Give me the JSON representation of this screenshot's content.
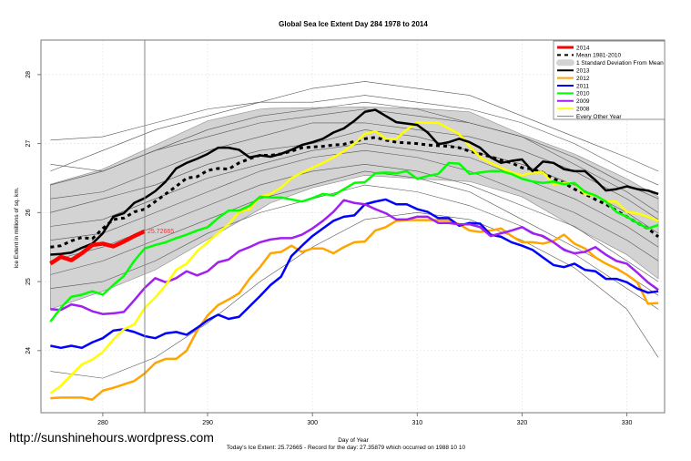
{
  "watermark_url": "http://sunshinehours.wordpress.com",
  "chart_data": {
    "type": "line",
    "title": "Global Sea Ice Extent Day 284 1978 to 2014",
    "xlabel": "Day of Year",
    "ylabel": "Ice Extent in millions of sq. km.",
    "subtitle": "Today's Ice Extent: 25.72665  - Record for the day: 27.35879 which occurred on 1988 10 10",
    "xlim": [
      274.1,
      333.6
    ],
    "ylim": [
      23.1,
      28.5
    ],
    "xticks": [
      280,
      290,
      300,
      310,
      320,
      330
    ],
    "yticks": [
      24,
      25,
      26,
      27,
      28
    ],
    "grid": true,
    "legend_position": "top-right",
    "current_day": 284,
    "current_value_label": "25.72665",
    "x_start": 275,
    "legend": [
      {
        "label": "2014",
        "color": "#ff0000",
        "style": "solid-thick"
      },
      {
        "label": "Mean 1981-2010",
        "color": "#000000",
        "style": "dashed"
      },
      {
        "label": "1 Standard Deviation From Mean",
        "color": "#d3d3d3",
        "style": "band"
      },
      {
        "label": "2013",
        "color": "#000000",
        "style": "solid"
      },
      {
        "label": "2012",
        "color": "#ffa500",
        "style": "solid"
      },
      {
        "label": "2011",
        "color": "#0000ff",
        "style": "solid"
      },
      {
        "label": "2010",
        "color": "#00ff00",
        "style": "solid"
      },
      {
        "label": "2009",
        "color": "#a020f0",
        "style": "solid"
      },
      {
        "label": "2008",
        "color": "#ffff00",
        "style": "solid"
      },
      {
        "label": "Every Other Year",
        "color": "#606060",
        "style": "thin"
      }
    ],
    "std_band": {
      "days": [
        275,
        280,
        285,
        290,
        295,
        296,
        300,
        305,
        310,
        315,
        320,
        325,
        330,
        333
      ],
      "upper": [
        26.41,
        26.63,
        26.98,
        27.33,
        27.5,
        27.51,
        27.52,
        27.53,
        27.51,
        27.46,
        27.13,
        26.85,
        26.49,
        26.23
      ],
      "lower": [
        24.6,
        24.86,
        25.17,
        25.61,
        26.05,
        26.14,
        26.36,
        26.54,
        26.49,
        26.45,
        26.23,
        25.79,
        25.39,
        25.04
      ]
    },
    "other_years": {
      "days": [
        275,
        280,
        285,
        290,
        295,
        300,
        305,
        310,
        315,
        320,
        325,
        330,
        333
      ],
      "series": [
        [
          27.05,
          27.1,
          27.3,
          27.5,
          27.6,
          27.8,
          27.9,
          27.8,
          27.7,
          27.4,
          27.1,
          26.8,
          26.6
        ],
        [
          26.6,
          26.9,
          27.2,
          27.4,
          27.6,
          27.6,
          27.7,
          27.6,
          27.5,
          27.3,
          27.0,
          26.6,
          26.4
        ],
        [
          26.4,
          26.6,
          26.9,
          27.1,
          27.3,
          27.4,
          27.5,
          27.4,
          27.3,
          27.1,
          26.8,
          26.4,
          26.2
        ],
        [
          26.2,
          26.3,
          26.6,
          26.9,
          27.1,
          27.3,
          27.3,
          27.2,
          27.1,
          26.9,
          26.6,
          26.2,
          25.9
        ],
        [
          26.0,
          26.2,
          26.4,
          26.7,
          26.9,
          27.0,
          27.2,
          27.1,
          26.9,
          26.7,
          26.4,
          26.0,
          25.7
        ],
        [
          25.8,
          25.9,
          26.2,
          26.5,
          26.7,
          26.9,
          27.0,
          26.9,
          26.8,
          26.5,
          26.2,
          25.8,
          25.5
        ],
        [
          25.6,
          25.7,
          26.0,
          26.3,
          26.6,
          26.8,
          26.9,
          26.8,
          26.6,
          26.3,
          26.0,
          25.6,
          25.3
        ],
        [
          25.3,
          25.5,
          25.8,
          26.1,
          26.4,
          26.6,
          26.7,
          26.6,
          26.4,
          26.1,
          25.8,
          25.3,
          25.0
        ],
        [
          25.1,
          25.3,
          25.6,
          25.9,
          26.2,
          26.4,
          26.6,
          26.5,
          26.3,
          25.9,
          25.5,
          25.1,
          24.8
        ],
        [
          24.9,
          25.0,
          25.3,
          25.7,
          26.0,
          26.2,
          26.4,
          26.3,
          26.1,
          25.8,
          25.4,
          24.9,
          24.6
        ],
        [
          23.7,
          23.6,
          23.9,
          24.4,
          25.0,
          25.5,
          25.9,
          26.0,
          25.9,
          25.6,
          25.2,
          24.6,
          23.9
        ],
        [
          26.7,
          26.6,
          26.9,
          27.2,
          27.4,
          27.5,
          27.6,
          27.5,
          27.3,
          27.1,
          26.7,
          26.3,
          26.0
        ]
      ]
    },
    "series": [
      {
        "name": "Mean 1981-2010",
        "color": "#000000",
        "dashed": true,
        "width": 3,
        "values": [
          25.5,
          25.52,
          25.59,
          25.64,
          25.62,
          25.77,
          25.9,
          25.92,
          26.01,
          26.05,
          26.16,
          26.27,
          26.38,
          26.5,
          26.52,
          26.61,
          26.64,
          26.63,
          26.72,
          26.78,
          26.83,
          26.83,
          26.85,
          26.89,
          26.94,
          26.95,
          26.96,
          26.98,
          26.99,
          27.03,
          27.07,
          27.09,
          27.05,
          27.02,
          27.01,
          27.0,
          26.98,
          26.97,
          26.96,
          26.94,
          26.89,
          26.85,
          26.81,
          26.76,
          26.72,
          26.65,
          26.63,
          26.58,
          26.49,
          26.43,
          26.34,
          26.27,
          26.19,
          26.12,
          26.03,
          25.94,
          25.85,
          25.77,
          25.65
        ]
      },
      {
        "name": "2012",
        "color": "#ffa500",
        "width": 2.5,
        "values": [
          23.31,
          23.32,
          23.32,
          23.32,
          23.29,
          23.42,
          23.46,
          23.51,
          23.56,
          23.67,
          23.82,
          23.88,
          23.88,
          24.0,
          24.29,
          24.51,
          24.66,
          24.74,
          24.83,
          25.04,
          25.21,
          25.41,
          25.43,
          25.52,
          25.43,
          25.48,
          25.48,
          25.41,
          25.5,
          25.57,
          25.58,
          25.74,
          25.79,
          25.88,
          25.89,
          25.89,
          25.89,
          25.89,
          25.89,
          25.83,
          25.74,
          25.72,
          25.74,
          25.77,
          25.66,
          25.57,
          25.57,
          25.55,
          25.59,
          25.68,
          25.55,
          25.48,
          25.35,
          25.26,
          25.19,
          25.1,
          24.99,
          24.68,
          24.69
        ]
      },
      {
        "name": "2011",
        "color": "#0000ff",
        "width": 2.5,
        "values": [
          24.07,
          24.04,
          24.07,
          24.04,
          24.12,
          24.18,
          24.29,
          24.31,
          24.27,
          24.21,
          24.18,
          24.25,
          24.27,
          24.23,
          24.33,
          24.44,
          24.52,
          24.46,
          24.49,
          24.64,
          24.79,
          24.95,
          25.07,
          25.37,
          25.52,
          25.66,
          25.77,
          25.88,
          25.94,
          25.96,
          26.12,
          26.16,
          26.19,
          26.12,
          26.12,
          26.05,
          26.01,
          25.92,
          25.92,
          25.81,
          25.85,
          25.84,
          25.68,
          25.65,
          25.57,
          25.52,
          25.46,
          25.35,
          25.24,
          25.21,
          25.26,
          25.17,
          25.15,
          25.04,
          25.04,
          24.99,
          24.9,
          24.84,
          24.86
        ]
      },
      {
        "name": "2009",
        "color": "#a020f0",
        "width": 2.5,
        "values": [
          24.6,
          24.59,
          24.67,
          24.64,
          24.57,
          24.53,
          24.54,
          24.56,
          24.73,
          24.91,
          25.05,
          24.99,
          25.05,
          25.15,
          25.09,
          25.15,
          25.28,
          25.32,
          25.44,
          25.5,
          25.57,
          25.61,
          25.63,
          25.63,
          25.68,
          25.77,
          25.88,
          26.01,
          26.18,
          26.14,
          26.12,
          26.05,
          25.99,
          25.9,
          25.9,
          25.94,
          25.94,
          25.85,
          25.85,
          25.83,
          25.83,
          25.79,
          25.66,
          25.7,
          25.74,
          25.79,
          25.7,
          25.66,
          25.57,
          25.46,
          25.41,
          25.43,
          25.5,
          25.39,
          25.3,
          25.26,
          25.13,
          24.99,
          24.88
        ]
      },
      {
        "name": "2008",
        "color": "#ffff00",
        "width": 2.5,
        "values": [
          23.38,
          23.49,
          23.65,
          23.8,
          23.87,
          23.98,
          24.16,
          24.31,
          24.38,
          24.62,
          24.77,
          24.95,
          25.17,
          25.26,
          25.44,
          25.57,
          25.7,
          25.83,
          26.01,
          26.05,
          26.23,
          26.27,
          26.36,
          26.5,
          26.58,
          26.65,
          26.72,
          26.8,
          26.89,
          27.0,
          27.14,
          27.18,
          27.07,
          27.07,
          27.2,
          27.31,
          27.3,
          27.3,
          27.22,
          27.14,
          26.96,
          26.8,
          26.72,
          26.65,
          26.58,
          26.54,
          26.58,
          26.58,
          26.41,
          26.43,
          26.43,
          26.27,
          26.25,
          26.16,
          26.16,
          26.01,
          25.99,
          25.94,
          25.88
        ]
      },
      {
        "name": "2010",
        "color": "#00ff00",
        "width": 2.5,
        "values": [
          24.42,
          24.62,
          24.78,
          24.81,
          24.86,
          24.81,
          24.95,
          25.08,
          25.3,
          25.48,
          25.53,
          25.57,
          25.63,
          25.68,
          25.74,
          25.79,
          25.92,
          26.03,
          26.03,
          26.1,
          26.23,
          26.22,
          26.22,
          26.19,
          26.16,
          26.21,
          26.27,
          26.25,
          26.34,
          26.43,
          26.44,
          26.57,
          26.58,
          26.57,
          26.6,
          26.49,
          26.53,
          26.56,
          26.72,
          26.71,
          26.56,
          26.58,
          26.6,
          26.6,
          26.56,
          26.49,
          26.45,
          26.43,
          26.45,
          26.41,
          26.43,
          26.3,
          26.25,
          26.16,
          26.01,
          25.94,
          25.85,
          25.77,
          25.82
        ]
      },
      {
        "name": "2013",
        "color": "#000000",
        "width": 2.5,
        "values": [
          25.39,
          25.4,
          25.42,
          25.49,
          25.55,
          25.7,
          25.94,
          25.99,
          26.14,
          26.21,
          26.31,
          26.45,
          26.64,
          26.72,
          26.78,
          26.85,
          26.94,
          26.94,
          26.91,
          26.8,
          26.83,
          26.81,
          26.85,
          26.91,
          26.98,
          27.02,
          27.07,
          27.16,
          27.22,
          27.33,
          27.46,
          27.49,
          27.4,
          27.31,
          27.29,
          27.27,
          27.16,
          26.99,
          27.02,
          27.07,
          27.02,
          26.94,
          26.8,
          26.72,
          26.75,
          26.77,
          26.6,
          26.74,
          26.72,
          26.63,
          26.6,
          26.6,
          26.47,
          26.32,
          26.34,
          26.38,
          26.34,
          26.32,
          26.27
        ]
      },
      {
        "name": "2014",
        "color": "#ff0000",
        "width": 4.5,
        "values": [
          25.26,
          25.36,
          25.31,
          25.41,
          25.53,
          25.55,
          25.51,
          25.58,
          25.66,
          25.73
        ]
      }
    ]
  }
}
